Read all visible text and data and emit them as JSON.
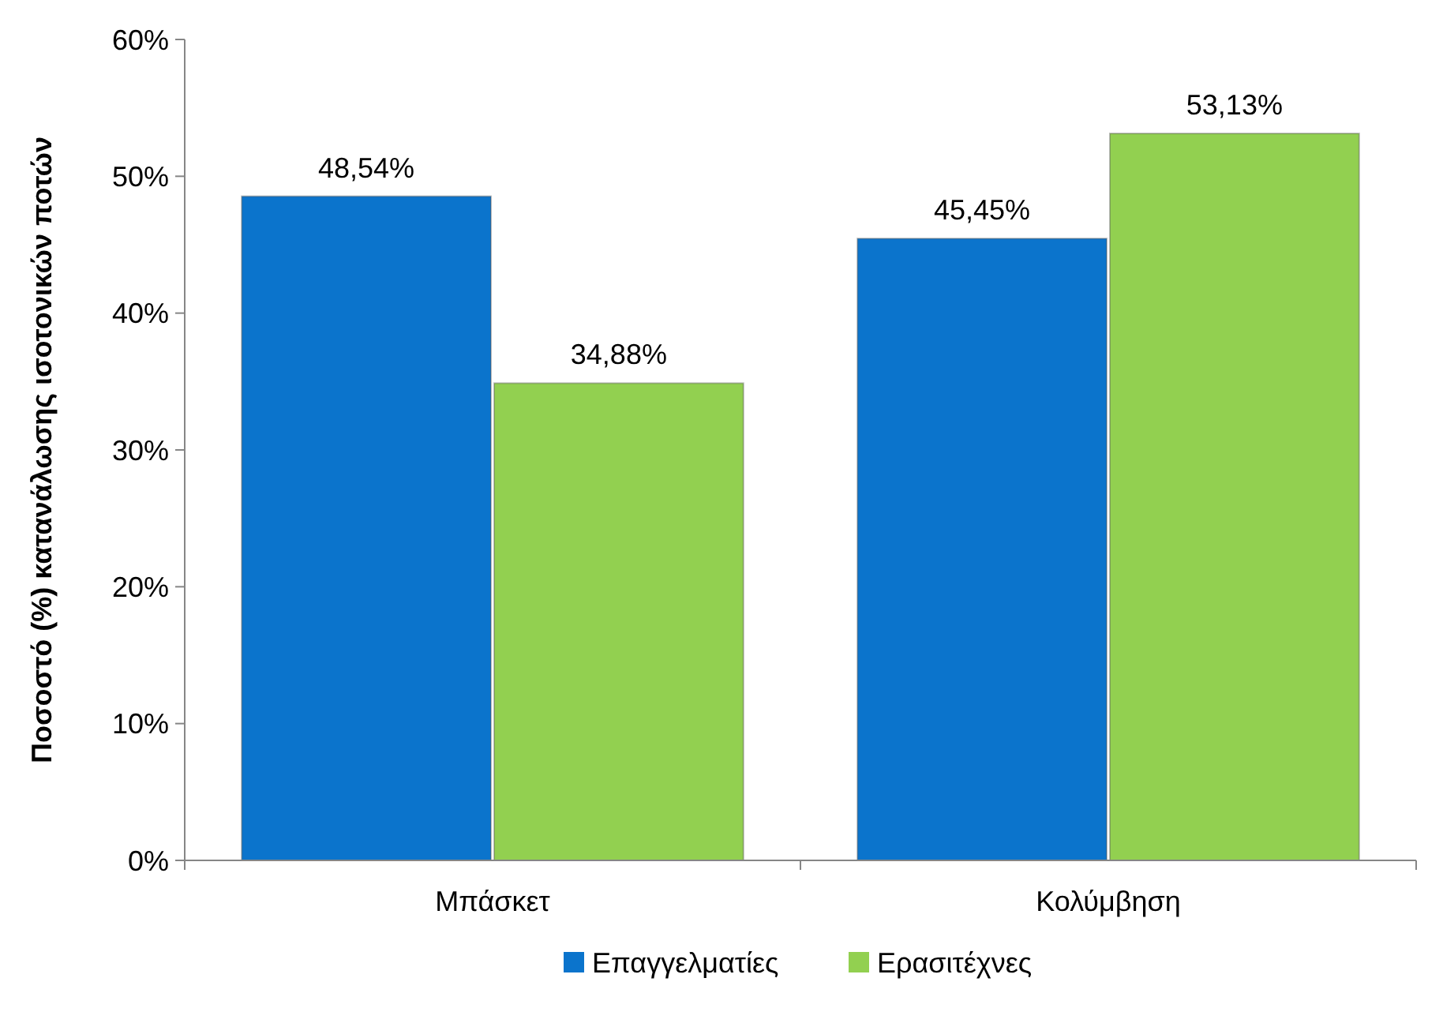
{
  "chart_data": {
    "type": "bar",
    "ylabel": "Ποσοστό (%) κατανάλωσης ισοτονικών ποτών",
    "categories": [
      "Μπάσκετ",
      "Κολύμβηση"
    ],
    "series": [
      {
        "name": "Επαγγελματίες",
        "color": "#0b74cc",
        "values": [
          48.54,
          45.45
        ],
        "value_labels": [
          "48,54%",
          "45,45%"
        ]
      },
      {
        "name": "Ερασιτέχνες",
        "color": "#92d050",
        "values": [
          34.88,
          53.13
        ],
        "value_labels": [
          "34,88%",
          "53,13%"
        ]
      }
    ],
    "ylim": [
      0,
      60
    ],
    "yticks": [
      {
        "value": 0,
        "label": "0%"
      },
      {
        "value": 10,
        "label": "10%"
      },
      {
        "value": 20,
        "label": "20%"
      },
      {
        "value": 30,
        "label": "30%"
      },
      {
        "value": 40,
        "label": "40%"
      },
      {
        "value": 50,
        "label": "50%"
      },
      {
        "value": 60,
        "label": "60%"
      }
    ],
    "grid": false,
    "legend": "bottom"
  }
}
